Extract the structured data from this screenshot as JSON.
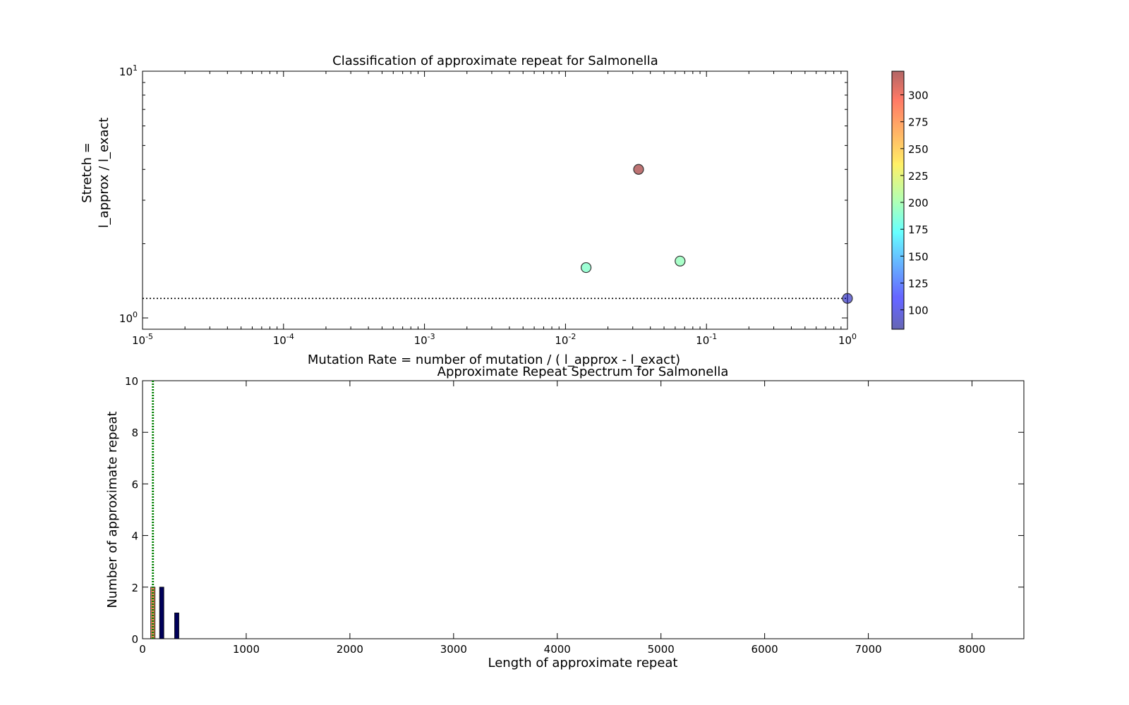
{
  "chart_data": [
    {
      "type": "scatter",
      "title": "Classification of approximate repeat for Salmonella",
      "xlabel": "Mutation Rate = number of mutation / ( l_approx - l_exact)",
      "ylabel_line1": "Stretch =",
      "ylabel_line2": "l_approx / l_exact",
      "xscale": "log",
      "yscale": "log",
      "xlim": [
        1e-05,
        1
      ],
      "ylim": [
        0.9,
        10
      ],
      "x_ticks": [
        {
          "base": "10",
          "exp": "-5"
        },
        {
          "base": "10",
          "exp": "-4"
        },
        {
          "base": "10",
          "exp": "-3"
        },
        {
          "base": "10",
          "exp": "-2"
        },
        {
          "base": "10",
          "exp": "-1"
        },
        {
          "base": "10",
          "exp": "0"
        }
      ],
      "y_ticks": [
        {
          "base": "10",
          "exp": "0"
        },
        {
          "base": "10",
          "exp": "1"
        }
      ],
      "reference_line": {
        "y": 1.2,
        "style": "dotted",
        "color": "#000000"
      },
      "points": [
        {
          "x": 0.014,
          "y": 1.6,
          "c": 190
        },
        {
          "x": 0.033,
          "y": 4.0,
          "c": 320
        },
        {
          "x": 0.065,
          "y": 1.7,
          "c": 195
        },
        {
          "x": 1.0,
          "y": 1.2,
          "c": 95
        }
      ],
      "colorbar": {
        "cmap": "jet",
        "range": [
          82,
          322
        ],
        "ticks": [
          "100",
          "125",
          "150",
          "175",
          "200",
          "225",
          "250",
          "275",
          "300"
        ]
      }
    },
    {
      "type": "bar",
      "title": "Approximate Repeat Spectrum for Salmonella",
      "xlabel": "Length of approximate repeat",
      "ylabel": "Number of approximate repeat",
      "xlim": [
        0,
        8500
      ],
      "ylim": [
        0,
        10
      ],
      "x_ticks": [
        "0",
        "1000",
        "2000",
        "3000",
        "4000",
        "5000",
        "6000",
        "7000",
        "8000"
      ],
      "y_ticks": [
        "0",
        "2",
        "4",
        "6",
        "8",
        "10"
      ],
      "vline": {
        "x": 100,
        "color": "#008000",
        "style": "dotted"
      },
      "series": [
        {
          "color": "#e08a5a",
          "bars": [
            {
              "x": 100,
              "value": 2
            }
          ]
        },
        {
          "color": "#00005a",
          "bars": [
            {
              "x": 185,
              "value": 2
            },
            {
              "x": 330,
              "value": 1
            }
          ]
        }
      ]
    }
  ]
}
